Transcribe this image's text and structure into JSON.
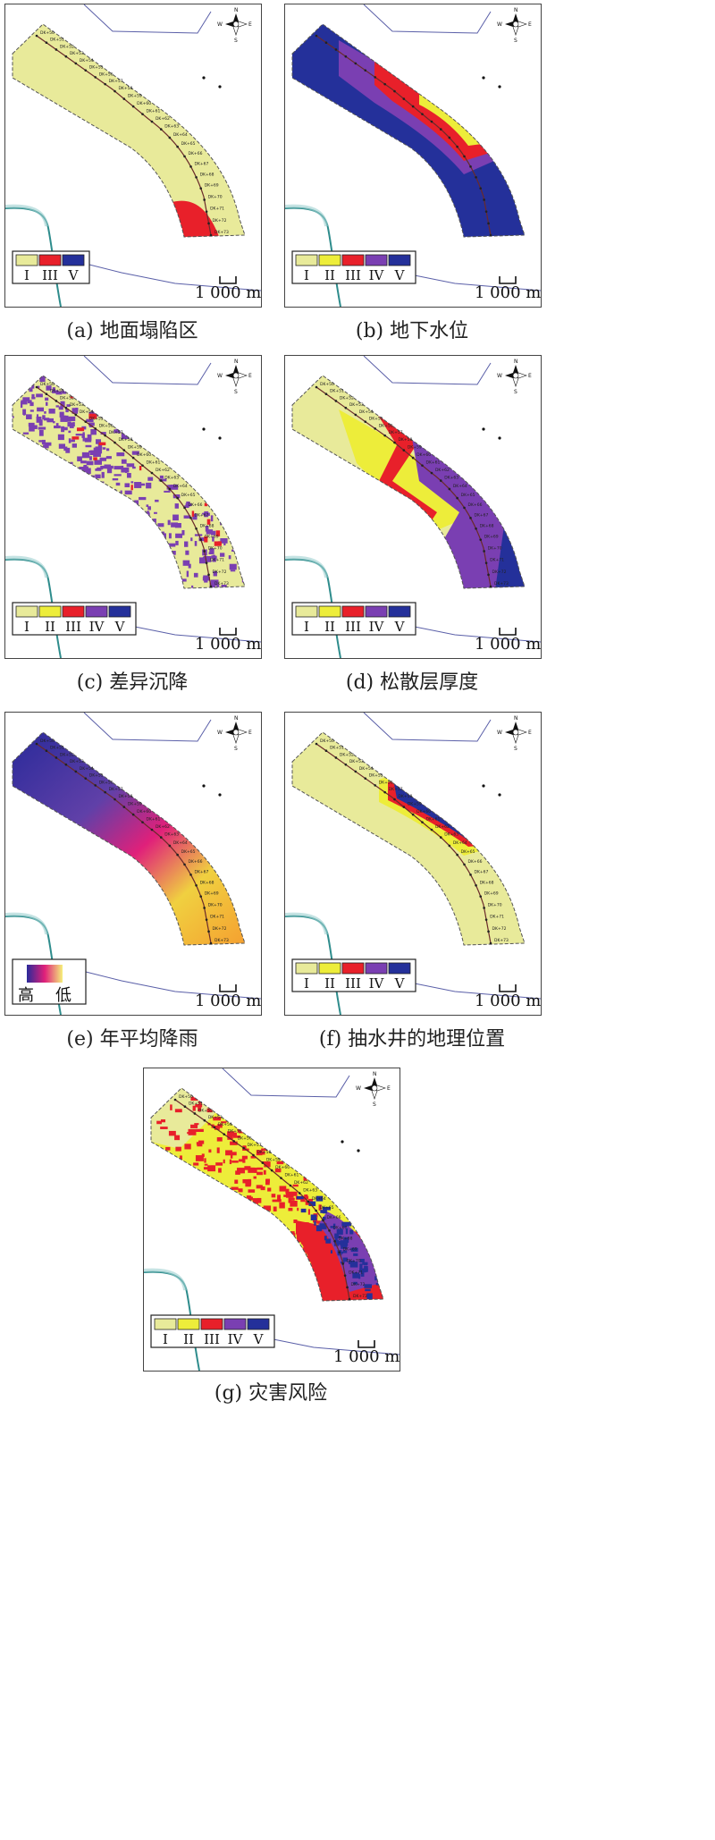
{
  "colors": {
    "class_I": "#e8ea9a",
    "class_II": "#eded3a",
    "class_III": "#e8202a",
    "class_IV": "#7a3fb2",
    "class_V": "#24309a",
    "river": "#2e8c8c",
    "road": "#5a5fa8",
    "grad_high": "#2a2a9a",
    "grad_mid": "#e0207a",
    "grad_low": "#f5f07a"
  },
  "compass": {
    "n": "N",
    "s": "S",
    "e": "E",
    "w": "W"
  },
  "scale_label": "1 000 m",
  "roman_labels": [
    "I",
    "II",
    "III",
    "IV",
    "V"
  ],
  "station_labels": [
    "DK+50",
    "DK+51",
    "DK+52",
    "DK+53",
    "DK+54",
    "DK+55",
    "DK+56",
    "DK+57",
    "DK+58",
    "DK+59",
    "DK+60",
    "DK+61",
    "DK+62",
    "DK+63",
    "DK+64",
    "DK+65",
    "DK+66",
    "DK+67",
    "DK+68",
    "DK+69",
    "DK+70",
    "DK+71",
    "DK+72",
    "DK+73"
  ],
  "panels": [
    {
      "id": "a",
      "caption": "(a) 地面塌陷区",
      "legend_labels": [
        "I",
        "III",
        "V"
      ]
    },
    {
      "id": "b",
      "caption": "(b) 地下水位",
      "legend_labels": [
        "I",
        "II",
        "III",
        "IV",
        "V"
      ]
    },
    {
      "id": "c",
      "caption": "(c) 差异沉降",
      "legend_labels": [
        "I",
        "II",
        "III",
        "IV",
        "V"
      ]
    },
    {
      "id": "d",
      "caption": "(d) 松散层厚度",
      "legend_labels": [
        "I",
        "II",
        "III",
        "IV",
        "V"
      ]
    },
    {
      "id": "e",
      "caption": "(e) 年平均降雨",
      "legend_labels": [
        "高",
        "低"
      ]
    },
    {
      "id": "f",
      "caption": "(f) 抽水井的地理位置",
      "legend_labels": [
        "I",
        "II",
        "III",
        "IV",
        "V"
      ]
    },
    {
      "id": "g",
      "caption": "(g) 灾害风险",
      "legend_labels": [
        "I",
        "II",
        "III",
        "IV",
        "V"
      ]
    }
  ]
}
